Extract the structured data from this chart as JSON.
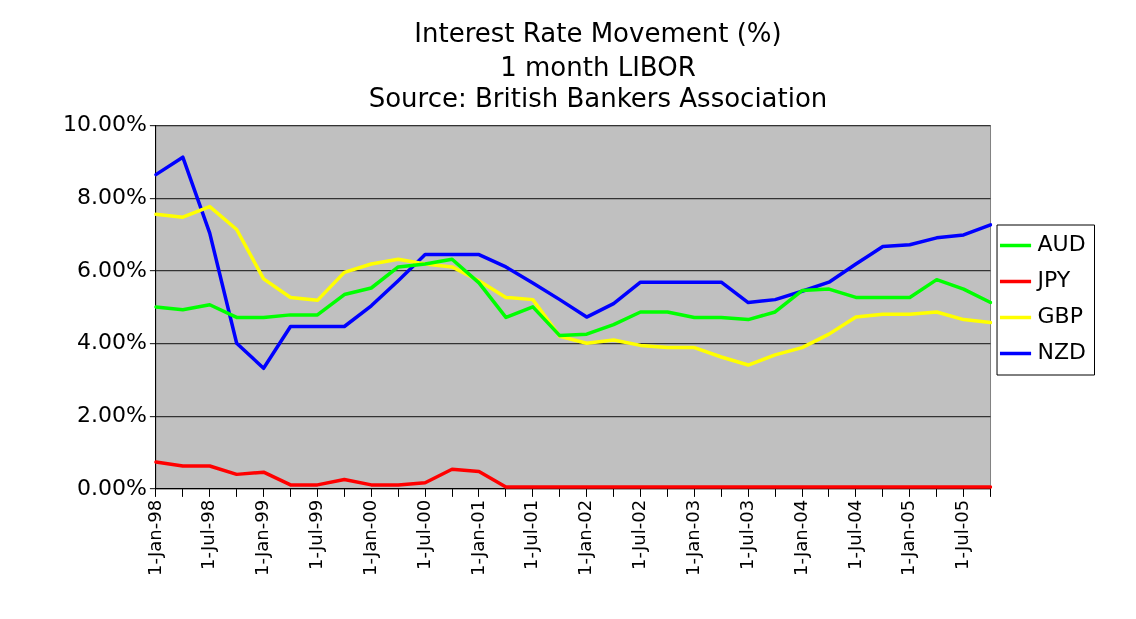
{
  "chart_data": {
    "type": "line",
    "title": "Interest Rate Movement (%)",
    "subtitle": "1 month LIBOR",
    "annotations": [
      "Source: British Bankers Association"
    ],
    "categories": [
      "1-Jan-98",
      null,
      "1-Jul-98",
      null,
      "1-Jan-99",
      null,
      "1-Jul-99",
      null,
      "1-Jan-00",
      null,
      "1-Jul-00",
      null,
      "1-Jan-01",
      null,
      "1-Jul-01",
      null,
      "1-Jan-02",
      null,
      "1-Jul-02",
      null,
      "1-Jan-03",
      null,
      "1-Jul-03",
      null,
      "1-Jan-04",
      null,
      "1-Jul-04",
      null,
      "1-Jan-05",
      null,
      "1-Jul-05",
      null
    ],
    "series": [
      {
        "name": "AUD",
        "color": "#00ff00",
        "values": [
          5.01,
          4.93,
          5.07,
          4.72,
          4.72,
          4.79,
          4.79,
          5.35,
          5.53,
          6.11,
          6.19,
          6.32,
          5.67,
          4.72,
          5.01,
          4.22,
          4.26,
          4.52,
          4.87,
          4.87,
          4.72,
          4.72,
          4.66,
          4.87,
          5.46,
          5.5,
          5.27,
          5.27,
          5.27,
          5.76,
          5.5,
          5.13
        ]
      },
      {
        "name": "JPY",
        "color": "#ff0000",
        "values": [
          0.74,
          0.63,
          0.63,
          0.4,
          0.46,
          0.11,
          0.11,
          0.26,
          0.11,
          0.11,
          0.17,
          0.54,
          0.48,
          0.05,
          0.05,
          0.05,
          0.05,
          0.05,
          0.05,
          0.05,
          0.05,
          0.05,
          0.05,
          0.05,
          0.05,
          0.05,
          0.05,
          0.05,
          0.05,
          0.05,
          0.05,
          0.05
        ]
      },
      {
        "name": "GBP",
        "color": "#ffff00",
        "values": [
          7.56,
          7.48,
          7.77,
          7.14,
          5.78,
          5.27,
          5.19,
          5.96,
          6.19,
          6.32,
          6.19,
          6.11,
          5.73,
          5.27,
          5.21,
          4.2,
          4.01,
          4.1,
          3.95,
          3.89,
          3.89,
          3.63,
          3.41,
          3.69,
          3.89,
          4.26,
          4.73,
          4.81,
          4.81,
          4.87,
          4.66,
          4.58
        ]
      },
      {
        "name": "NZD",
        "color": "#0000ff",
        "values": [
          8.65,
          9.13,
          7.04,
          4.01,
          3.32,
          4.47,
          4.47,
          4.47,
          5.04,
          5.73,
          6.45,
          6.45,
          6.45,
          6.11,
          5.67,
          5.21,
          4.73,
          5.1,
          5.69,
          5.69,
          5.69,
          5.69,
          5.13,
          5.21,
          5.44,
          5.69,
          6.19,
          6.67,
          6.72,
          6.91,
          6.99,
          7.27
        ]
      }
    ],
    "ylim": [
      0,
      10
    ],
    "yticks": [
      {
        "value": 0,
        "label": "0.00%"
      },
      {
        "value": 2,
        "label": "2.00%"
      },
      {
        "value": 4,
        "label": "4.00%"
      },
      {
        "value": 6,
        "label": "6.00%"
      },
      {
        "value": 8,
        "label": "8.00%"
      },
      {
        "value": 10,
        "label": "10.00%"
      }
    ],
    "grid": "y",
    "legend": "right",
    "marker": "none",
    "line_style": "solid"
  }
}
